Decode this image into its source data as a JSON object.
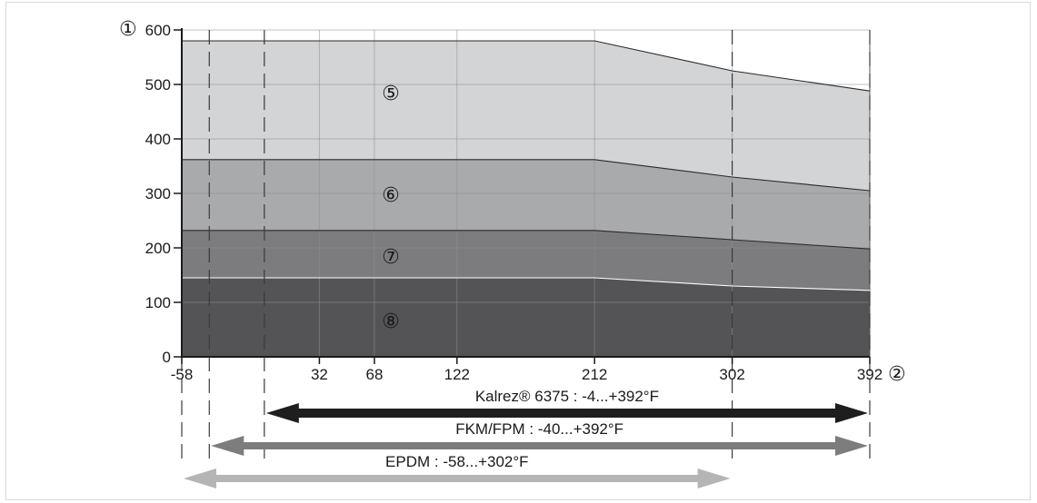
{
  "chart_data": {
    "type": "area",
    "title": "",
    "xlabel_marker": "②",
    "ylabel_marker": "①",
    "xlim": [
      -58,
      392
    ],
    "ylim": [
      0,
      600
    ],
    "x_ticks": [
      -58,
      32,
      68,
      122,
      212,
      302,
      392
    ],
    "y_ticks": [
      0,
      100,
      200,
      300,
      400,
      500
    ],
    "y_top_label": "600",
    "grid": true,
    "series": [
      {
        "name": "⑤",
        "color": "#d3d4d6",
        "x": [
          -58,
          212,
          302,
          392
        ],
        "y": [
          580,
          580,
          525,
          488
        ]
      },
      {
        "name": "⑥",
        "color": "#a9aaac",
        "x": [
          -58,
          212,
          302,
          392
        ],
        "y": [
          362,
          362,
          330,
          305
        ]
      },
      {
        "name": "⑦",
        "color": "#7c7c7e",
        "x": [
          -58,
          212,
          302,
          392
        ],
        "y": [
          232,
          232,
          215,
          198
        ]
      },
      {
        "name": "⑧",
        "color": "#545456",
        "x": [
          -58,
          212,
          302,
          392
        ],
        "y": [
          145,
          145,
          130,
          122
        ]
      }
    ],
    "region_labels": [
      {
        "text": "⑤",
        "x": 68,
        "y": 485
      },
      {
        "text": "⑥",
        "x": 68,
        "y": 298
      },
      {
        "text": "⑦",
        "x": 68,
        "y": 185
      },
      {
        "text": "⑧",
        "x": 68,
        "y": 67
      }
    ],
    "temperature_ranges": [
      {
        "label": "Kalrez® 6375 : -4...+392°F",
        "from": -4,
        "to": 392,
        "color": "#1e1e1e"
      },
      {
        "label": "FKM/FPM : -40...+392°F",
        "from": -40,
        "to": 392,
        "color": "#7d7d7d"
      },
      {
        "label": "EPDM : -58...+302°F",
        "from": -58,
        "to": 302,
        "color": "#b5b5b5"
      }
    ],
    "vertical_dashes_at": [
      -58,
      -40,
      -4,
      302,
      392
    ]
  }
}
